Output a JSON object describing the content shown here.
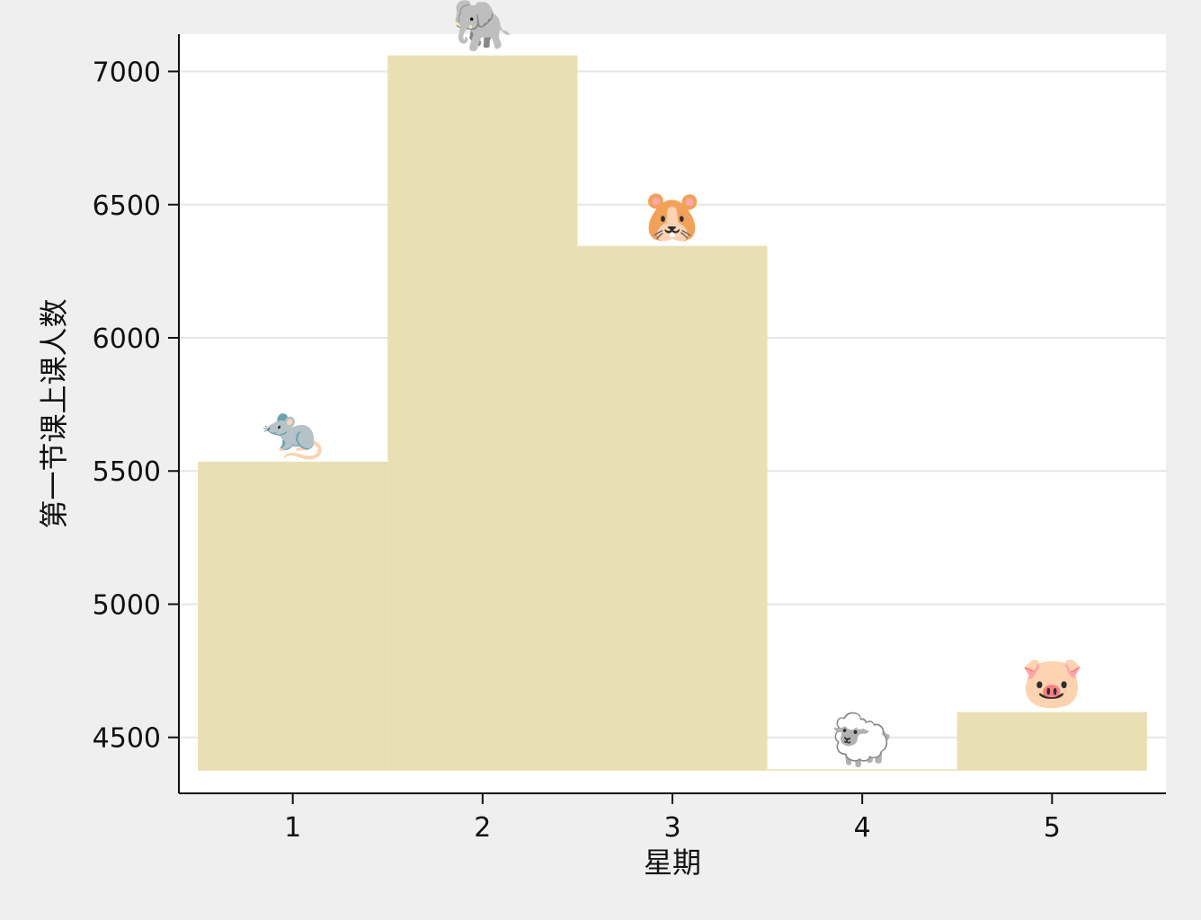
{
  "chart_data": {
    "type": "bar",
    "xlabel": "星期",
    "ylabel": "第一节课上课人数",
    "categories": [
      "1",
      "2",
      "3",
      "4",
      "5"
    ],
    "values": [
      5535,
      7060,
      6345,
      4380,
      4595
    ],
    "bar_width": 1,
    "bar_base": 4375,
    "xlim": [
      0.4,
      5.6
    ],
    "ylim": [
      4290,
      7140
    ],
    "yticks": [
      4500,
      5000,
      5500,
      6000,
      6500,
      7000
    ],
    "grid": true,
    "markers": [
      {
        "category": "1",
        "emoji": "🐀",
        "name": "rat-icon"
      },
      {
        "category": "2",
        "emoji": "🐘",
        "name": "elephant-icon"
      },
      {
        "category": "3",
        "emoji": "🐹",
        "name": "hamster-icon"
      },
      {
        "category": "4",
        "emoji": "🐑",
        "name": "sheep-icon"
      },
      {
        "category": "5",
        "emoji": "🐷",
        "name": "pig-icon"
      }
    ],
    "colors": {
      "bar": "#e8e0b4",
      "plot_background": "#ffffff",
      "figure_background": "#efefef",
      "grid": "#e6e6e6",
      "axis": "#111111"
    }
  }
}
